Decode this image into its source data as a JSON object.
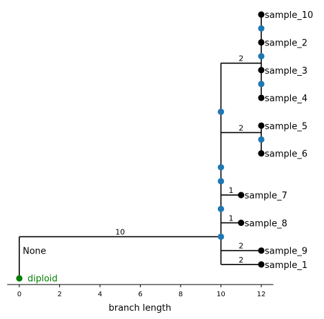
{
  "chart_data": {
    "type": "tree",
    "xlabel": "branch length",
    "xticks": [
      0,
      2,
      4,
      6,
      8,
      10,
      12
    ],
    "xlim": [
      -0.6,
      12.6
    ],
    "root": {
      "name": "diploid",
      "color": "#008000"
    },
    "trunk": {
      "label": "None",
      "length": 10
    },
    "node_color": "#1f77b4",
    "leaf_color": "#000000",
    "edges": [
      {
        "from_x": 10,
        "to_x": 12,
        "row": 15.5,
        "label": "2"
      },
      {
        "from_x": 10,
        "to_x": 12,
        "row": 10.5,
        "label": "2"
      },
      {
        "from_x": 10,
        "to_x": 11,
        "row": 6,
        "label": "1"
      },
      {
        "from_x": 10,
        "to_x": 11,
        "row": 4,
        "label": "1"
      },
      {
        "from_x": 10,
        "to_x": 12,
        "row": 2,
        "label": "2"
      },
      {
        "from_x": 10,
        "to_x": 12,
        "row": 1,
        "label": "2"
      },
      {
        "from_x": 0,
        "to_x": 10,
        "row": 3,
        "label": "10"
      }
    ],
    "leaves": [
      {
        "name": "sample_10",
        "x": 12,
        "row": 19
      },
      {
        "name": "sample_2",
        "x": 12,
        "row": 17
      },
      {
        "name": "sample_3",
        "x": 12,
        "row": 15
      },
      {
        "name": "sample_4",
        "x": 12,
        "row": 13
      },
      {
        "name": "sample_5",
        "x": 12,
        "row": 11
      },
      {
        "name": "sample_6",
        "x": 12,
        "row": 9
      },
      {
        "name": "sample_7",
        "x": 11,
        "row": 6
      },
      {
        "name": "sample_8",
        "x": 11,
        "row": 4
      },
      {
        "name": "sample_9",
        "x": 12,
        "row": 2
      },
      {
        "name": "sample_1",
        "x": 12,
        "row": 1
      }
    ],
    "internal_nodes": [
      {
        "x": 12,
        "row": 18
      },
      {
        "x": 12,
        "row": 16
      },
      {
        "x": 12,
        "row": 14
      },
      {
        "x": 12,
        "row": 10
      },
      {
        "x": 10,
        "row": 12
      },
      {
        "x": 10,
        "row": 8
      },
      {
        "x": 10,
        "row": 7
      },
      {
        "x": 10,
        "row": 5
      },
      {
        "x": 10,
        "row": 3
      }
    ]
  }
}
